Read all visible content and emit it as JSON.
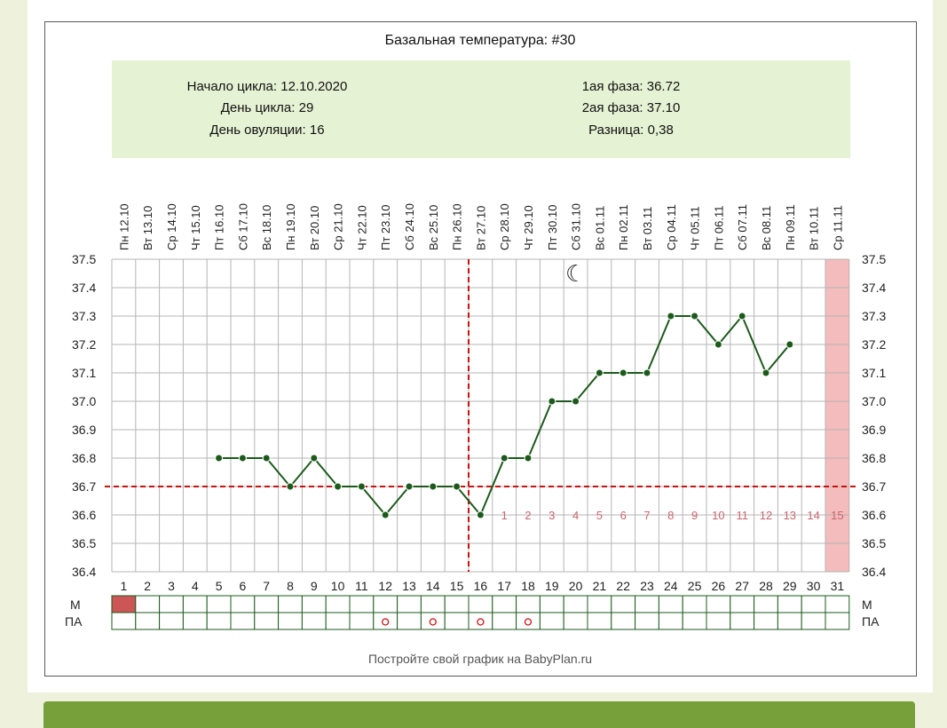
{
  "page": {
    "colors": {
      "page_background": "#eef2dc",
      "info_box": "#e6f2d4",
      "grid": "#b5b5b5",
      "line": "#1c5a1c",
      "coverline": "#cc1111",
      "phase_numbers": "#c8666e",
      "highlight_day": "#f4bcbc",
      "menstruation_cell": "#cc5555",
      "footer_bar": "#78a03a"
    }
  },
  "chart_data": {
    "type": "line",
    "title": "Базальная температура: #30",
    "info": {
      "left": [
        "Начало цикла: 12.10.2020",
        "День цикла: 29",
        "День овуляции: 16"
      ],
      "right": [
        "1ая фаза: 36.72",
        "2ая фаза: 37.10",
        "Разница: 0,38"
      ]
    },
    "dates": [
      "Пн 12.10",
      "Вт 13.10",
      "Ср 14.10",
      "Чт 15.10",
      "Пт 16.10",
      "Сб 17.10",
      "Вс 18.10",
      "Пн 19.10",
      "Вт 20.10",
      "Ср 21.10",
      "Чт 22.10",
      "Пт 23.10",
      "Сб 24.10",
      "Вс 25.10",
      "Пн 26.10",
      "Вт 27.10",
      "Ср 28.10",
      "Чт 29.10",
      "Пт 30.10",
      "Сб 31.10",
      "Вс 01.11",
      "Пн 02.11",
      "Вт 03.11",
      "Ср 04.11",
      "Чт 05.11",
      "Пт 06.11",
      "Сб 07.11",
      "Вс 08.11",
      "Пн 09.11",
      "Вт 10.11",
      "Ср 11.11"
    ],
    "days": [
      "1",
      "2",
      "3",
      "4",
      "5",
      "6",
      "7",
      "8",
      "9",
      "10",
      "11",
      "12",
      "13",
      "14",
      "15",
      "16",
      "17",
      "18",
      "19",
      "20",
      "21",
      "22",
      "23",
      "24",
      "25",
      "26",
      "27",
      "28",
      "29",
      "30",
      "31"
    ],
    "series": [
      {
        "x": [
          5,
          6,
          7,
          8,
          9,
          10,
          11,
          12,
          13,
          14,
          15,
          16,
          17,
          18,
          19,
          20,
          21,
          22,
          23,
          24,
          25,
          26,
          27,
          28,
          29
        ],
        "values": [
          36.8,
          36.8,
          36.8,
          36.7,
          36.8,
          36.7,
          36.7,
          36.6,
          36.7,
          36.7,
          36.7,
          36.6,
          36.8,
          36.8,
          37.0,
          37.0,
          37.1,
          37.1,
          37.1,
          37.3,
          37.3,
          37.2,
          37.3,
          37.1,
          37.2
        ]
      }
    ],
    "ylim": [
      36.4,
      37.5
    ],
    "yticks": [
      "37.5",
      "37.4",
      "37.3",
      "37.2",
      "37.1",
      "37.0",
      "36.9",
      "36.8",
      "36.7",
      "36.6",
      "36.5",
      "36.4"
    ],
    "grid": true,
    "coverline": 36.7,
    "ovulation_day": 16,
    "moon_day": 20,
    "moon_symbol": "☾",
    "highlighted_day": 31,
    "phase_numbers": {
      "start_day": 17,
      "labels": [
        "1",
        "2",
        "3",
        "4",
        "5",
        "6",
        "7",
        "8",
        "9",
        "10",
        "11",
        "12",
        "13",
        "14",
        "15"
      ]
    },
    "row_labels": {
      "m": "М",
      "pa": "ПА"
    },
    "m_days": [
      1
    ],
    "pa_days": [
      12,
      14,
      16,
      18
    ],
    "pa_mark": "o",
    "footer": "Постройте свой график на BabyPlan.ru"
  }
}
